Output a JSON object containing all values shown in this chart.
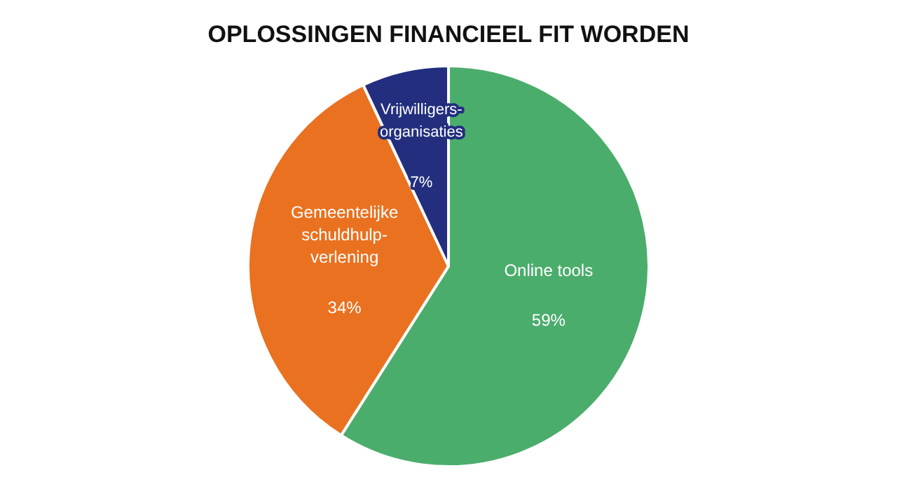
{
  "chart_data": {
    "type": "pie",
    "title": "OPLOSSINGEN FINANCIEEL FIT WORDEN",
    "categories": [
      "Online tools",
      "Gemeentelijke schuldhulp-verlening",
      "Vrijwilligers-organisaties"
    ],
    "values": [
      59,
      34,
      7
    ],
    "colors": [
      "#4bad6c",
      "#ea7120",
      "#232f7e"
    ],
    "value_labels": [
      "59%",
      "34%",
      "7%"
    ]
  }
}
